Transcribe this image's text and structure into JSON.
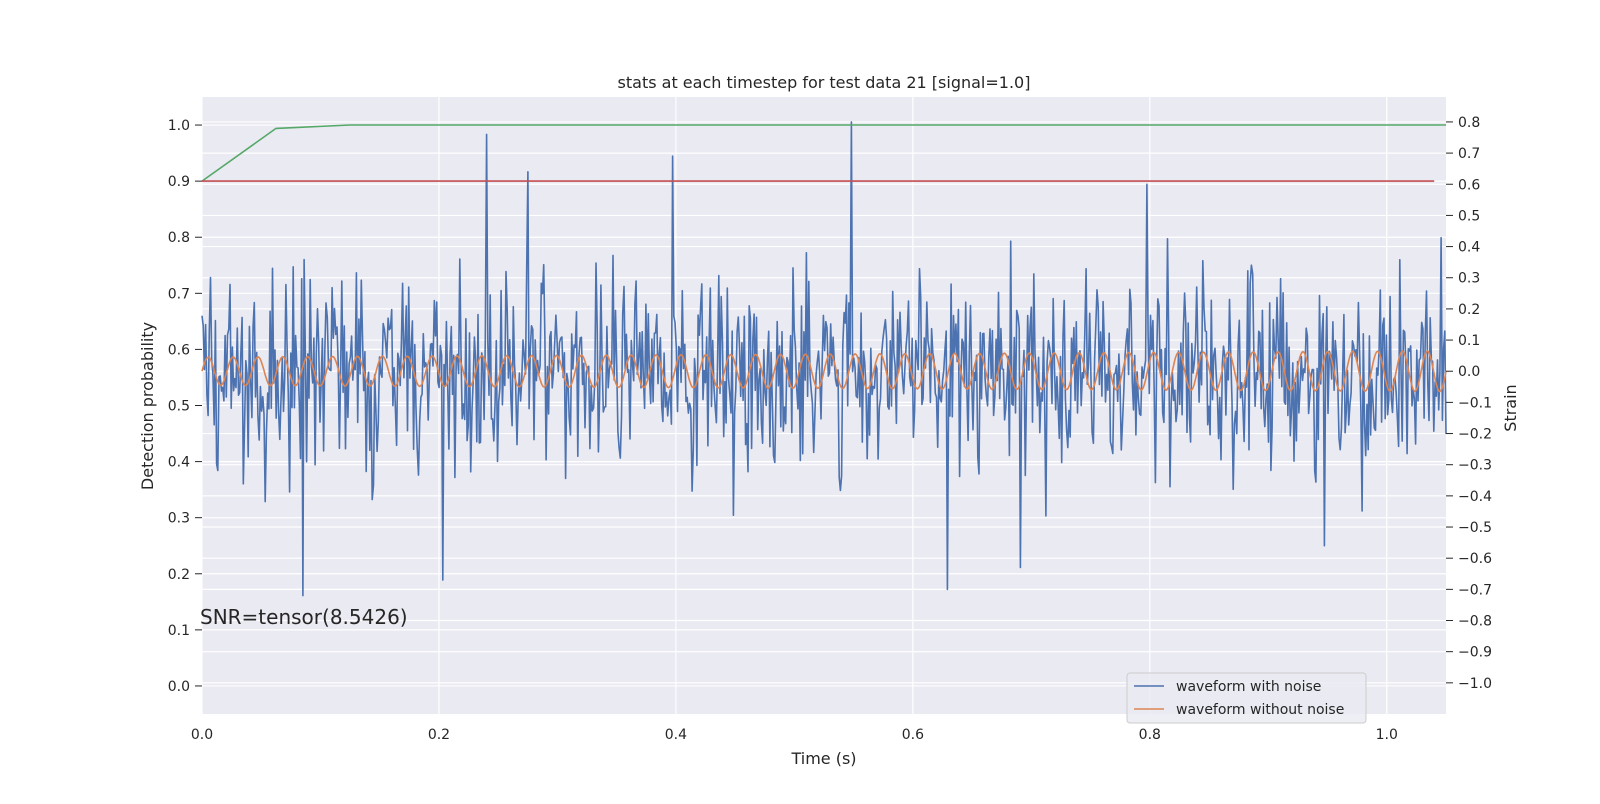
{
  "chart_data": {
    "type": "line",
    "title": "stats at each timestep for test data 21 [signal=1.0]",
    "xlabel": "Time (s)",
    "ylabel_left": "Detection probability",
    "ylabel_right": "Strain",
    "xlim": [
      0.0,
      1.05
    ],
    "ylim_left": [
      -0.05,
      1.05
    ],
    "ylim_right": [
      -1.1,
      0.88
    ],
    "x_ticks": [
      0.0,
      0.2,
      0.4,
      0.6,
      0.8,
      1.0
    ],
    "x_tick_labels": [
      "0.0",
      "0.2",
      "0.4",
      "0.6",
      "0.8",
      "1.0"
    ],
    "y_left_ticks": [
      0.0,
      0.1,
      0.2,
      0.3,
      0.4,
      0.5,
      0.6,
      0.7,
      0.8,
      0.9,
      1.0
    ],
    "y_left_tick_labels": [
      "0.0",
      "0.1",
      "0.2",
      "0.3",
      "0.4",
      "0.5",
      "0.6",
      "0.7",
      "0.8",
      "0.9",
      "1.0"
    ],
    "y_right_ticks": [
      -1.0,
      -0.9,
      -0.8,
      -0.7,
      -0.6,
      -0.5,
      -0.4,
      -0.3,
      -0.2,
      -0.1,
      0.0,
      0.1,
      0.2,
      0.3,
      0.4,
      0.5,
      0.6,
      0.7,
      0.8
    ],
    "y_right_tick_labels": [
      "−1.0",
      "−0.9",
      "−0.8",
      "−0.7",
      "−0.6",
      "−0.5",
      "−0.4",
      "−0.3",
      "−0.2",
      "−0.1",
      "0.0",
      "0.1",
      "0.2",
      "0.3",
      "0.4",
      "0.5",
      "0.6",
      "0.7",
      "0.8"
    ],
    "grid": true,
    "legend_position": "lower-right",
    "annotation": "SNR=tensor(8.5426)",
    "series": [
      {
        "name": "waveform with noise",
        "axis": "right",
        "color": "#4c72b0",
        "n_points": 1024,
        "x_range": [
          0.0,
          1.05
        ],
        "y_approx_range": [
          -0.72,
          0.8
        ],
        "notable_peaks": [
          {
            "x": 0.24,
            "y": 0.76
          },
          {
            "x": 0.275,
            "y": 0.64
          },
          {
            "x": 0.397,
            "y": 0.69
          },
          {
            "x": 0.548,
            "y": 0.8
          },
          {
            "x": 0.798,
            "y": 0.6
          }
        ],
        "notable_troughs": [
          {
            "x": 0.085,
            "y": -0.72
          },
          {
            "x": 0.203,
            "y": -0.67
          },
          {
            "x": 0.629,
            "y": -0.7
          },
          {
            "x": 0.691,
            "y": -0.63
          },
          {
            "x": 0.947,
            "y": -0.56
          }
        ]
      },
      {
        "name": "waveform without noise",
        "axis": "right",
        "color": "#dd8452",
        "amplitude_start": 0.045,
        "amplitude_end": 0.065,
        "cycles": 50,
        "x_range": [
          0.0,
          1.05
        ]
      },
      {
        "name": "",
        "axis": "left",
        "color": "#55a868",
        "x": [
          0.0,
          0.0625,
          0.125,
          1.05
        ],
        "values": [
          0.9,
          0.994,
          1.0,
          1.0
        ]
      },
      {
        "name": "",
        "axis": "left",
        "color": "#c44e52",
        "x": [
          0.0,
          1.04
        ],
        "values": [
          0.9,
          0.9
        ]
      }
    ]
  },
  "colors": {
    "axes_background": "#eaeaf2",
    "grid": "#ffffff",
    "text": "#262626"
  }
}
